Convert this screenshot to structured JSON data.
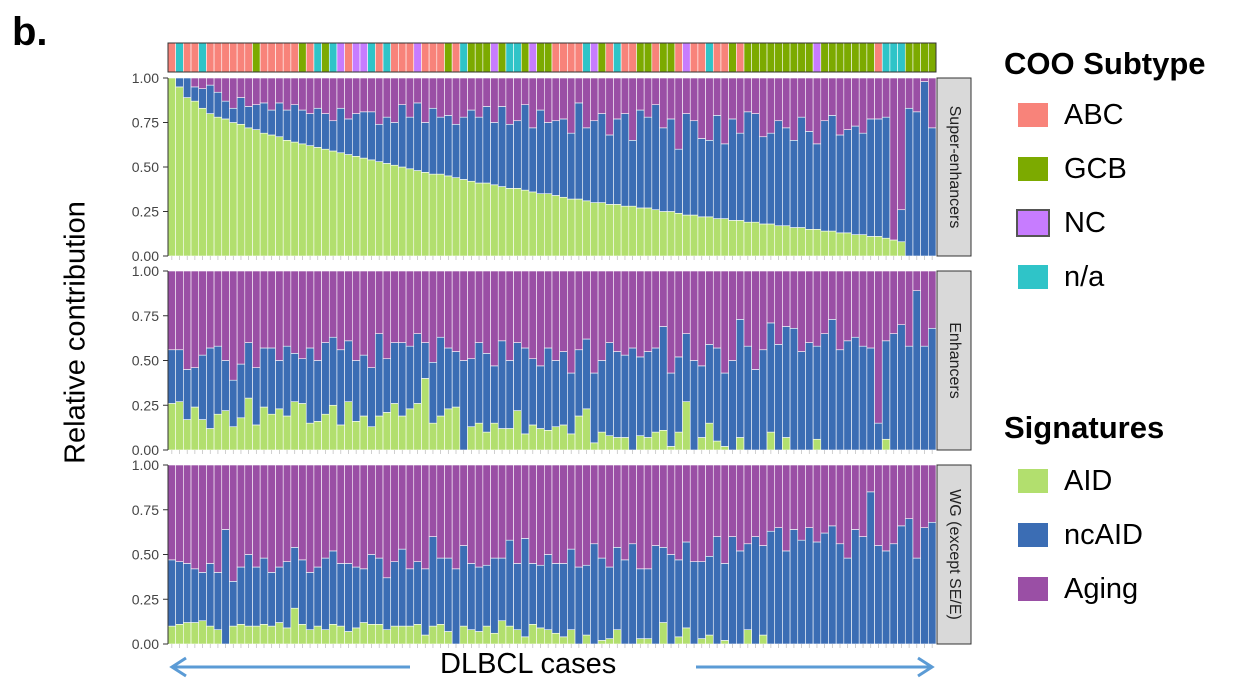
{
  "panel_label": "b.",
  "chart_data": {
    "type": "stacked_bar",
    "n_cases": 100,
    "xlabel": "DLBCL cases",
    "ylabel": "Relative contribution",
    "ylim": [
      0,
      1
    ],
    "yticks": [
      "0.00",
      "0.25",
      "0.50",
      "0.75",
      "1.00"
    ],
    "facets": [
      "Super-enhancers",
      "Enhancers",
      "WG (except SE/E)"
    ],
    "series_names": [
      "AID",
      "ncAID",
      "Aging"
    ],
    "series_colors": {
      "AID": "#b2df6e",
      "ncAID": "#3b6db4",
      "Aging": "#9a4fa5"
    },
    "coo_colors": {
      "ABC": "#f8837a",
      "GCB": "#7caa00",
      "NC": "#c77cff",
      "n/a": "#2fc4c8"
    },
    "coo": [
      "ABC",
      "n/a",
      "ABC",
      "ABC",
      "n/a",
      "ABC",
      "ABC",
      "ABC",
      "ABC",
      "ABC",
      "ABC",
      "GCB",
      "ABC",
      "ABC",
      "ABC",
      "ABC",
      "ABC",
      "GCB",
      "ABC",
      "n/a",
      "GCB",
      "n/a",
      "NC",
      "ABC",
      "NC",
      "NC",
      "n/a",
      "ABC",
      "n/a",
      "ABC",
      "ABC",
      "ABC",
      "NC",
      "ABC",
      "ABC",
      "ABC",
      "GCB",
      "ABC",
      "n/a",
      "GCB",
      "GCB",
      "GCB",
      "NC",
      "GCB",
      "n/a",
      "n/a",
      "GCB",
      "NC",
      "GCB",
      "GCB",
      "ABC",
      "ABC",
      "ABC",
      "ABC",
      "n/a",
      "NC",
      "GCB",
      "ABC",
      "n/a",
      "ABC",
      "ABC",
      "GCB",
      "GCB",
      "ABC",
      "GCB",
      "GCB",
      "ABC",
      "NC",
      "ABC",
      "ABC",
      "n/a",
      "ABC",
      "ABC",
      "GCB",
      "ABC",
      "GCB",
      "GCB",
      "GCB",
      "GCB",
      "GCB",
      "GCB",
      "GCB",
      "GCB",
      "GCB",
      "NC",
      "GCB",
      "GCB",
      "GCB",
      "GCB",
      "GCB",
      "GCB",
      "GCB",
      "ABC",
      "n/a",
      "n/a",
      "n/a",
      "GCB",
      "GCB",
      "GCB",
      "GCB"
    ],
    "facet_data": [
      {
        "name": "Super-enhancers",
        "AID": [
          1.0,
          0.95,
          0.89,
          0.87,
          0.83,
          0.8,
          0.78,
          0.77,
          0.75,
          0.74,
          0.72,
          0.71,
          0.69,
          0.68,
          0.67,
          0.65,
          0.64,
          0.63,
          0.62,
          0.61,
          0.6,
          0.59,
          0.58,
          0.57,
          0.56,
          0.55,
          0.54,
          0.53,
          0.52,
          0.51,
          0.5,
          0.49,
          0.48,
          0.47,
          0.46,
          0.46,
          0.45,
          0.44,
          0.43,
          0.42,
          0.41,
          0.41,
          0.4,
          0.39,
          0.38,
          0.38,
          0.37,
          0.36,
          0.35,
          0.35,
          0.34,
          0.33,
          0.32,
          0.32,
          0.31,
          0.3,
          0.3,
          0.29,
          0.29,
          0.28,
          0.28,
          0.27,
          0.27,
          0.26,
          0.25,
          0.25,
          0.24,
          0.23,
          0.23,
          0.22,
          0.22,
          0.21,
          0.21,
          0.2,
          0.2,
          0.19,
          0.19,
          0.18,
          0.18,
          0.17,
          0.17,
          0.16,
          0.16,
          0.15,
          0.15,
          0.14,
          0.14,
          0.13,
          0.13,
          0.12,
          0.12,
          0.11,
          0.11,
          0.1,
          0.09,
          0.08,
          0.0,
          0.0,
          0.0,
          0.0
        ],
        "ncAID": [
          0.0,
          0.05,
          0.11,
          0.08,
          0.11,
          0.16,
          0.14,
          0.1,
          0.08,
          0.15,
          0.12,
          0.14,
          0.17,
          0.14,
          0.19,
          0.17,
          0.21,
          0.19,
          0.18,
          0.22,
          0.2,
          0.17,
          0.25,
          0.2,
          0.24,
          0.26,
          0.27,
          0.21,
          0.26,
          0.24,
          0.35,
          0.29,
          0.38,
          0.28,
          0.37,
          0.32,
          0.34,
          0.3,
          0.35,
          0.4,
          0.37,
          0.43,
          0.35,
          0.45,
          0.36,
          0.38,
          0.48,
          0.36,
          0.47,
          0.4,
          0.42,
          0.44,
          0.37,
          0.54,
          0.41,
          0.46,
          0.5,
          0.39,
          0.48,
          0.52,
          0.37,
          0.55,
          0.51,
          0.59,
          0.47,
          0.52,
          0.36,
          0.57,
          0.53,
          0.44,
          0.43,
          0.58,
          0.42,
          0.57,
          0.49,
          0.62,
          0.61,
          0.49,
          0.51,
          0.59,
          0.55,
          0.49,
          0.62,
          0.55,
          0.48,
          0.62,
          0.65,
          0.55,
          0.58,
          0.61,
          0.57,
          0.66,
          0.66,
          0.68,
          0.0,
          0.18,
          0.83,
          0.81,
          0.98,
          0.72
        ],
        "Aging": [
          0.0,
          0.0,
          0.0,
          0.05,
          0.06,
          0.04,
          0.08,
          0.13,
          0.17,
          0.11,
          0.16,
          0.15,
          0.14,
          0.18,
          0.14,
          0.18,
          0.15,
          0.18,
          0.2,
          0.17,
          0.2,
          0.24,
          0.17,
          0.23,
          0.2,
          0.19,
          0.19,
          0.26,
          0.22,
          0.25,
          0.15,
          0.22,
          0.14,
          0.25,
          0.17,
          0.22,
          0.21,
          0.26,
          0.22,
          0.18,
          0.22,
          0.16,
          0.25,
          0.16,
          0.26,
          0.24,
          0.15,
          0.28,
          0.18,
          0.25,
          0.24,
          0.23,
          0.31,
          0.14,
          0.28,
          0.24,
          0.2,
          0.32,
          0.23,
          0.2,
          0.35,
          0.18,
          0.22,
          0.15,
          0.28,
          0.23,
          0.4,
          0.2,
          0.24,
          0.34,
          0.35,
          0.21,
          0.37,
          0.23,
          0.31,
          0.19,
          0.2,
          0.33,
          0.31,
          0.24,
          0.28,
          0.35,
          0.22,
          0.3,
          0.37,
          0.24,
          0.21,
          0.32,
          0.29,
          0.27,
          0.31,
          0.23,
          0.23,
          0.22,
          0.91,
          0.74,
          0.17,
          0.19,
          0.02,
          0.28
        ]
      },
      {
        "name": "Enhancers",
        "AID": [
          0.26,
          0.27,
          0.17,
          0.24,
          0.17,
          0.12,
          0.2,
          0.22,
          0.13,
          0.18,
          0.29,
          0.14,
          0.24,
          0.2,
          0.23,
          0.19,
          0.27,
          0.26,
          0.15,
          0.16,
          0.2,
          0.25,
          0.14,
          0.27,
          0.16,
          0.19,
          0.13,
          0.19,
          0.21,
          0.26,
          0.19,
          0.23,
          0.26,
          0.4,
          0.15,
          0.19,
          0.23,
          0.24,
          0.0,
          0.13,
          0.15,
          0.1,
          0.15,
          0.12,
          0.12,
          0.22,
          0.09,
          0.14,
          0.12,
          0.11,
          0.13,
          0.14,
          0.09,
          0.19,
          0.23,
          0.04,
          0.1,
          0.08,
          0.07,
          0.07,
          0.0,
          0.08,
          0.07,
          0.1,
          0.11,
          0.02,
          0.1,
          0.27,
          0.0,
          0.07,
          0.15,
          0.05,
          0.02,
          0.0,
          0.07,
          0.0,
          0.0,
          0.0,
          0.1,
          0.0,
          0.07,
          0.0,
          0.0,
          0.0,
          0.06,
          0.0,
          0.0,
          0.0,
          0.0,
          0.0,
          0.0,
          0.0,
          0.0,
          0.06,
          0.0,
          0.0,
          0.0,
          0.0,
          0.0,
          0.0
        ],
        "ncAID": [
          0.3,
          0.29,
          0.28,
          0.22,
          0.36,
          0.45,
          0.38,
          0.28,
          0.26,
          0.3,
          0.31,
          0.32,
          0.33,
          0.37,
          0.27,
          0.39,
          0.27,
          0.25,
          0.42,
          0.34,
          0.4,
          0.38,
          0.42,
          0.34,
          0.34,
          0.34,
          0.33,
          0.46,
          0.3,
          0.34,
          0.41,
          0.35,
          0.39,
          0.2,
          0.34,
          0.44,
          0.34,
          0.31,
          0.5,
          0.38,
          0.45,
          0.44,
          0.32,
          0.49,
          0.38,
          0.38,
          0.48,
          0.37,
          0.35,
          0.46,
          0.37,
          0.41,
          0.34,
          0.37,
          0.39,
          0.39,
          0.4,
          0.52,
          0.48,
          0.46,
          0.57,
          0.44,
          0.48,
          0.47,
          0.58,
          0.41,
          0.42,
          0.38,
          0.5,
          0.4,
          0.44,
          0.52,
          0.41,
          0.5,
          0.66,
          0.58,
          0.45,
          0.56,
          0.61,
          0.59,
          0.62,
          0.68,
          0.55,
          0.6,
          0.52,
          0.65,
          0.73,
          0.56,
          0.61,
          0.63,
          0.58,
          0.57,
          0.15,
          0.55,
          0.65,
          0.7,
          0.58,
          0.89,
          0.58,
          0.68
        ],
        "Aging": [
          0.44,
          0.44,
          0.55,
          0.54,
          0.47,
          0.43,
          0.42,
          0.5,
          0.61,
          0.52,
          0.4,
          0.54,
          0.43,
          0.43,
          0.5,
          0.42,
          0.46,
          0.49,
          0.43,
          0.5,
          0.4,
          0.37,
          0.44,
          0.39,
          0.5,
          0.47,
          0.54,
          0.35,
          0.49,
          0.4,
          0.4,
          0.42,
          0.35,
          0.4,
          0.51,
          0.37,
          0.43,
          0.45,
          0.5,
          0.49,
          0.4,
          0.46,
          0.53,
          0.39,
          0.5,
          0.4,
          0.43,
          0.49,
          0.53,
          0.43,
          0.5,
          0.45,
          0.57,
          0.44,
          0.38,
          0.57,
          0.5,
          0.4,
          0.45,
          0.47,
          0.43,
          0.48,
          0.45,
          0.43,
          0.31,
          0.57,
          0.48,
          0.35,
          0.5,
          0.53,
          0.41,
          0.43,
          0.57,
          0.5,
          0.27,
          0.42,
          0.55,
          0.44,
          0.29,
          0.41,
          0.31,
          0.32,
          0.45,
          0.4,
          0.42,
          0.35,
          0.27,
          0.44,
          0.39,
          0.37,
          0.42,
          0.43,
          0.85,
          0.39,
          0.35,
          0.3,
          0.42,
          0.11,
          0.42,
          0.32
        ]
      },
      {
        "name": "WG (except SE/E)",
        "AID": [
          0.1,
          0.11,
          0.12,
          0.12,
          0.13,
          0.1,
          0.08,
          0.0,
          0.1,
          0.11,
          0.1,
          0.1,
          0.11,
          0.1,
          0.12,
          0.09,
          0.2,
          0.11,
          0.08,
          0.1,
          0.08,
          0.11,
          0.1,
          0.07,
          0.09,
          0.12,
          0.11,
          0.11,
          0.08,
          0.1,
          0.1,
          0.1,
          0.11,
          0.05,
          0.1,
          0.11,
          0.07,
          0.0,
          0.1,
          0.08,
          0.07,
          0.1,
          0.06,
          0.13,
          0.1,
          0.08,
          0.04,
          0.11,
          0.09,
          0.08,
          0.06,
          0.04,
          0.08,
          0.0,
          0.05,
          0.0,
          0.02,
          0.03,
          0.08,
          0.0,
          0.0,
          0.03,
          0.03,
          0.0,
          0.12,
          0.0,
          0.04,
          0.09,
          0.0,
          0.03,
          0.05,
          0.0,
          0.02,
          0.0,
          0.0,
          0.08,
          0.0,
          0.05,
          0.0,
          0.0,
          0.0,
          0.0,
          0.0,
          0.0,
          0.0,
          0.0,
          0.0,
          0.0,
          0.0,
          0.0,
          0.0,
          0.0,
          0.0,
          0.0,
          0.0,
          0.0,
          0.0,
          0.0,
          0.0,
          0.0
        ],
        "ncAID": [
          0.37,
          0.35,
          0.33,
          0.3,
          0.27,
          0.35,
          0.32,
          0.64,
          0.25,
          0.32,
          0.4,
          0.33,
          0.37,
          0.3,
          0.31,
          0.37,
          0.34,
          0.36,
          0.32,
          0.33,
          0.4,
          0.41,
          0.35,
          0.38,
          0.34,
          0.3,
          0.39,
          0.37,
          0.29,
          0.36,
          0.43,
          0.32,
          0.35,
          0.37,
          0.5,
          0.37,
          0.41,
          0.42,
          0.45,
          0.37,
          0.36,
          0.34,
          0.42,
          0.35,
          0.48,
          0.37,
          0.55,
          0.34,
          0.35,
          0.42,
          0.39,
          0.41,
          0.45,
          0.43,
          0.39,
          0.56,
          0.46,
          0.4,
          0.46,
          0.47,
          0.56,
          0.39,
          0.39,
          0.55,
          0.42,
          0.5,
          0.43,
          0.48,
          0.46,
          0.43,
          0.44,
          0.6,
          0.43,
          0.6,
          0.52,
          0.48,
          0.6,
          0.5,
          0.63,
          0.65,
          0.52,
          0.64,
          0.58,
          0.65,
          0.57,
          0.62,
          0.66,
          0.56,
          0.48,
          0.64,
          0.6,
          0.85,
          0.55,
          0.52,
          0.56,
          0.66,
          0.7,
          0.48,
          0.65,
          0.68
        ],
        "Aging": [
          0.53,
          0.54,
          0.55,
          0.58,
          0.6,
          0.55,
          0.6,
          0.36,
          0.65,
          0.57,
          0.5,
          0.57,
          0.52,
          0.6,
          0.57,
          0.54,
          0.46,
          0.53,
          0.6,
          0.57,
          0.52,
          0.48,
          0.55,
          0.55,
          0.57,
          0.58,
          0.5,
          0.52,
          0.63,
          0.54,
          0.47,
          0.58,
          0.54,
          0.58,
          0.4,
          0.52,
          0.52,
          0.58,
          0.45,
          0.55,
          0.57,
          0.56,
          0.52,
          0.52,
          0.42,
          0.55,
          0.41,
          0.55,
          0.56,
          0.5,
          0.55,
          0.55,
          0.47,
          0.57,
          0.56,
          0.44,
          0.52,
          0.57,
          0.46,
          0.53,
          0.44,
          0.58,
          0.58,
          0.45,
          0.46,
          0.5,
          0.53,
          0.43,
          0.54,
          0.54,
          0.51,
          0.4,
          0.55,
          0.4,
          0.48,
          0.44,
          0.4,
          0.45,
          0.37,
          0.35,
          0.48,
          0.36,
          0.42,
          0.35,
          0.43,
          0.38,
          0.34,
          0.44,
          0.52,
          0.36,
          0.4,
          0.15,
          0.45,
          0.48,
          0.44,
          0.34,
          0.3,
          0.52,
          0.35,
          0.32
        ]
      }
    ]
  },
  "legend_coo": {
    "title": "COO Subtype",
    "items": [
      {
        "label": "ABC",
        "color": "#f8837a"
      },
      {
        "label": "GCB",
        "color": "#7caa00"
      },
      {
        "label": "NC",
        "color": "#c77cff"
      },
      {
        "label": "n/a",
        "color": "#2fc4c8"
      }
    ]
  },
  "legend_sig": {
    "title": "Signatures",
    "items": [
      {
        "label": "AID",
        "color": "#b2df6e"
      },
      {
        "label": "ncAID",
        "color": "#3b6db4"
      },
      {
        "label": "Aging",
        "color": "#9a4fa5"
      }
    ]
  }
}
